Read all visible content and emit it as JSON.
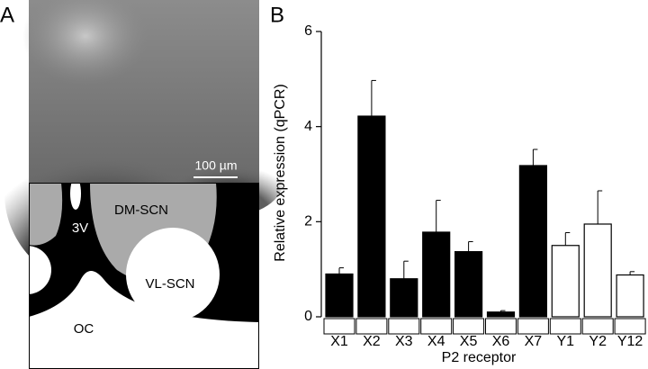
{
  "panel_a": {
    "label": "A",
    "scale_bar": "100 µm",
    "regions": [
      "3V",
      "DM-SCN",
      "VL-SCN",
      "OC"
    ]
  },
  "chart_data": {
    "type": "bar",
    "panel_label": "B",
    "y_label": "Relative expression (qPCR)",
    "x_label": "P2 receptor",
    "categories": [
      "X1",
      "X2",
      "X3",
      "X4",
      "X5",
      "X6",
      "X7",
      "Y1",
      "Y2",
      "Y12"
    ],
    "values": [
      0.9,
      4.22,
      0.8,
      1.78,
      1.37,
      0.1,
      3.18,
      1.5,
      1.95,
      0.88
    ],
    "errors": [
      0.13,
      0.75,
      0.37,
      0.67,
      0.21,
      0.03,
      0.34,
      0.27,
      0.7,
      0.07
    ],
    "colors": [
      "#000000",
      "#000000",
      "#000000",
      "#000000",
      "#000000",
      "#000000",
      "#000000",
      "#ffffff",
      "#ffffff",
      "#ffffff"
    ],
    "ylim": [
      0,
      6
    ],
    "yticks": [
      0,
      2,
      4,
      6
    ]
  }
}
